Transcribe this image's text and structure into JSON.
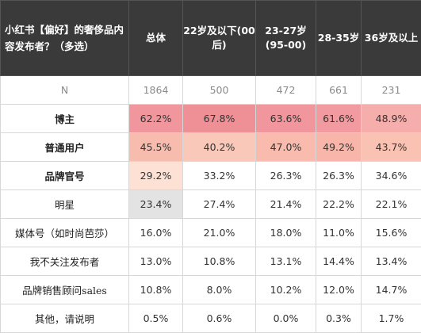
{
  "table": {
    "headers": [
      "小红书【偏好】的奢侈品内容发布者？（多选）",
      "总体",
      "22岁及以下(00后)",
      "23-27岁(95-00)",
      "28-35岁",
      "36岁及以上"
    ],
    "rows": [
      {
        "label": "N",
        "values": [
          "1864",
          "500",
          "472",
          "661",
          "231"
        ]
      },
      {
        "label": "博主",
        "values": [
          "62.2%",
          "67.8%",
          "63.6%",
          "61.6%",
          "48.9%"
        ]
      },
      {
        "label": "普通用户",
        "values": [
          "45.5%",
          "40.2%",
          "47.0%",
          "49.2%",
          "43.7%"
        ]
      },
      {
        "label": "品牌官号",
        "values": [
          "29.2%",
          "33.2%",
          "26.3%",
          "26.3%",
          "34.6%"
        ]
      },
      {
        "label": "明星",
        "values": [
          "23.4%",
          "27.4%",
          "21.4%",
          "22.2%",
          "22.1%"
        ]
      },
      {
        "label": "媒体号（如时尚芭莎）",
        "values": [
          "16.0%",
          "21.0%",
          "18.0%",
          "11.0%",
          "15.6%"
        ]
      },
      {
        "label": "我不关注发布者",
        "values": [
          "13.0%",
          "10.8%",
          "13.1%",
          "14.4%",
          "13.4%"
        ]
      },
      {
        "label": "品牌销售顾问sales",
        "values": [
          "10.8%",
          "8.0%",
          "10.2%",
          "12.0%",
          "14.7%"
        ]
      },
      {
        "label": "其他，请说明",
        "values": [
          "0.5%",
          "0.6%",
          "0.0%",
          "0.3%",
          "1.7%"
        ]
      }
    ]
  },
  "colors": {
    "header_bg": "#3a3a3a",
    "heat_high": "#f0969c",
    "heat_mid": "#f6b3a6",
    "heat_low": "#fbd0c2",
    "heat_lowest": "#fde3d6",
    "gray_cell": "#e3e3e3"
  }
}
